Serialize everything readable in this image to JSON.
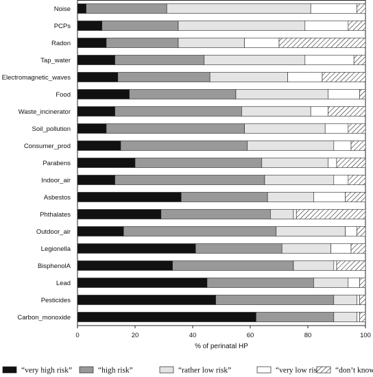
{
  "chart_data": {
    "type": "bar",
    "orientation": "horizontal",
    "stacked": true,
    "xlabel": "% of perinatal HP",
    "xlim": [
      0,
      100
    ],
    "xticks": [
      0,
      20,
      40,
      60,
      80,
      100
    ],
    "grid": false,
    "legend_position": "bottom",
    "categories": [
      "Noise",
      "PCPs",
      "Radon",
      "Tap_water",
      "Electromagnetic_waves",
      "Food",
      "Waste_incinerator",
      "Soil_pollution",
      "Consumer_prod",
      "Parabens",
      "Indoor_air",
      "Asbestos",
      "Phthalates",
      "Outdoor_air",
      "Legionella",
      "BisphenolA",
      "Lead",
      "Pesticides",
      "Carbon_monoxide"
    ],
    "series": [
      {
        "name": "“very high risk”",
        "fill": "#111111",
        "pattern": "solid",
        "values": [
          3,
          8.5,
          10,
          13,
          14,
          18,
          13,
          10,
          15,
          20,
          13,
          36,
          29,
          16,
          41,
          33,
          45,
          48,
          62
        ]
      },
      {
        "name": "“high risk”",
        "fill": "#999999",
        "pattern": "solid",
        "values": [
          28,
          26.5,
          25,
          31,
          32,
          37,
          44,
          48,
          44,
          44,
          52,
          30,
          38,
          53,
          30,
          42,
          37,
          41,
          27
        ]
      },
      {
        "name": "“rather low risk”",
        "fill": "#e4e4e4",
        "pattern": "solid",
        "values": [
          50,
          44,
          23,
          35,
          27,
          32,
          24,
          28,
          30,
          23,
          24,
          16,
          8,
          24,
          17,
          14,
          12,
          8,
          8
        ]
      },
      {
        "name": "“very low risk”",
        "fill": "#ffffff",
        "pattern": "solid",
        "values": [
          16,
          15,
          12,
          17,
          12,
          11,
          6,
          8,
          6,
          3,
          5,
          11,
          1,
          4,
          7,
          1,
          4,
          1,
          1
        ]
      },
      {
        "name": "“don’t know”",
        "fill": "#ffffff",
        "pattern": "hatched",
        "values": [
          3,
          6,
          30,
          4,
          15,
          2,
          13,
          6,
          5,
          10,
          6,
          7,
          24,
          3,
          5,
          10,
          2,
          2,
          2
        ]
      }
    ]
  }
}
